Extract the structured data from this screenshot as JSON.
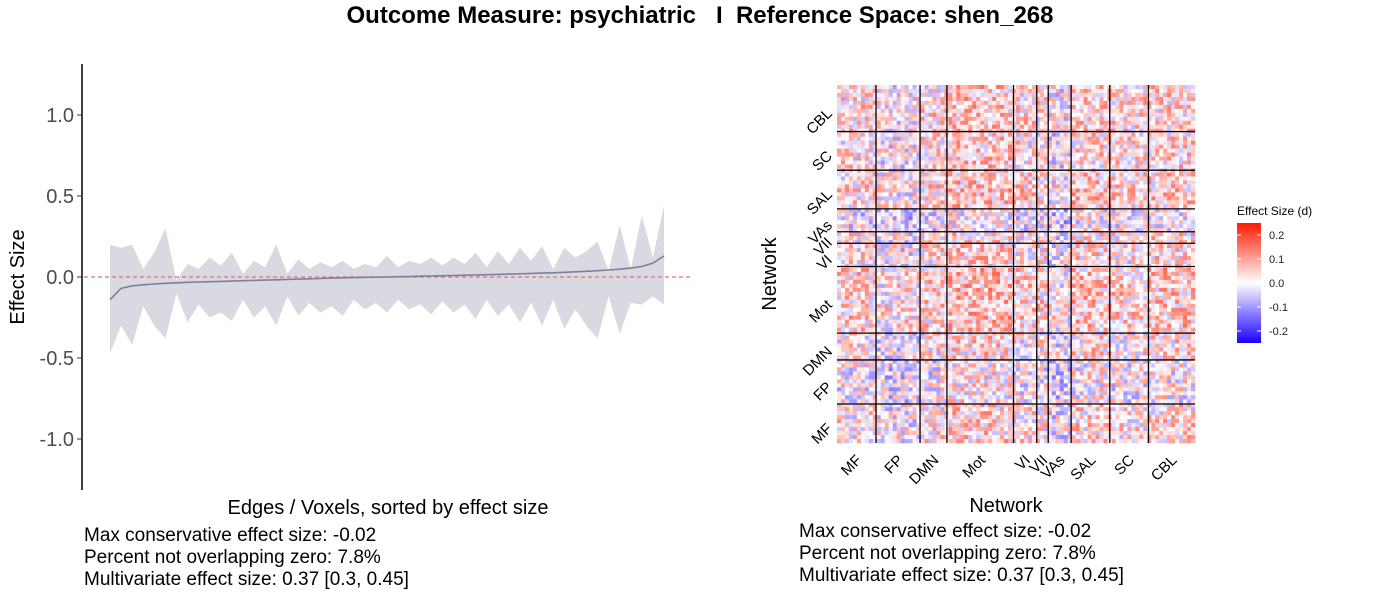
{
  "title": "Outcome Measure: psychiatric   I  Reference Space: shen_268",
  "chart_data": [
    {
      "type": "line",
      "xlabel": "Edges / Voxels, sorted by effect size",
      "ylabel": "Effect Size",
      "ylim": [
        -1.3,
        1.3
      ],
      "yticks": [
        -1.0,
        -0.5,
        0.0,
        0.5,
        1.0
      ],
      "ytick_labels": [
        "-1.0",
        "-0.5",
        "0.0",
        "0.5",
        "1.0"
      ],
      "reference_line": 0,
      "colors": {
        "line": "#7f7f9a",
        "band": "#d9d9e2",
        "reference": "#e07070"
      },
      "x": [
        0,
        0.02,
        0.04,
        0.06,
        0.08,
        0.1,
        0.12,
        0.14,
        0.16,
        0.18,
        0.2,
        0.22,
        0.24,
        0.26,
        0.28,
        0.3,
        0.32,
        0.34,
        0.36,
        0.38,
        0.4,
        0.42,
        0.44,
        0.46,
        0.48,
        0.5,
        0.52,
        0.54,
        0.56,
        0.58,
        0.6,
        0.62,
        0.64,
        0.66,
        0.68,
        0.7,
        0.72,
        0.74,
        0.76,
        0.78,
        0.8,
        0.82,
        0.84,
        0.86,
        0.88,
        0.9,
        0.92,
        0.94,
        0.96,
        0.98,
        1.0
      ],
      "series": [
        {
          "values": [
            -0.14,
            -0.07,
            -0.055,
            -0.048,
            -0.043,
            -0.039,
            -0.036,
            -0.033,
            -0.031,
            -0.029,
            -0.027,
            -0.025,
            -0.023,
            -0.021,
            -0.019,
            -0.017,
            -0.015,
            -0.013,
            -0.011,
            -0.009,
            -0.007,
            -0.005,
            -0.004,
            -0.002,
            -0.001,
            0.0,
            0.002,
            0.003,
            0.005,
            0.006,
            0.008,
            0.009,
            0.011,
            0.012,
            0.014,
            0.016,
            0.018,
            0.02,
            0.022,
            0.024,
            0.026,
            0.029,
            0.032,
            0.035,
            0.039,
            0.043,
            0.048,
            0.055,
            0.065,
            0.085,
            0.13
          ]
        }
      ],
      "band_upper": [
        0.2,
        0.18,
        0.2,
        0.05,
        0.15,
        0.3,
        -0.02,
        0.08,
        0.05,
        0.12,
        0.07,
        0.15,
        0.02,
        0.1,
        0.06,
        0.2,
        0.02,
        0.11,
        0.05,
        0.09,
        0.06,
        0.1,
        0.05,
        0.08,
        0.06,
        0.13,
        0.06,
        0.1,
        0.08,
        0.12,
        0.07,
        0.12,
        0.08,
        0.15,
        0.06,
        0.16,
        0.08,
        0.18,
        0.1,
        0.19,
        0.05,
        0.18,
        0.12,
        0.16,
        0.22,
        0.04,
        0.32,
        0.05,
        0.38,
        0.12,
        0.44
      ],
      "band_lower": [
        -0.47,
        -0.3,
        -0.42,
        -0.18,
        -0.3,
        -0.38,
        -0.1,
        -0.28,
        -0.17,
        -0.25,
        -0.22,
        -0.27,
        -0.14,
        -0.25,
        -0.18,
        -0.3,
        -0.12,
        -0.24,
        -0.16,
        -0.22,
        -0.18,
        -0.24,
        -0.14,
        -0.2,
        -0.16,
        -0.22,
        -0.14,
        -0.2,
        -0.17,
        -0.23,
        -0.15,
        -0.22,
        -0.17,
        -0.26,
        -0.14,
        -0.24,
        -0.17,
        -0.28,
        -0.16,
        -0.3,
        -0.14,
        -0.32,
        -0.2,
        -0.3,
        -0.38,
        -0.12,
        -0.35,
        -0.16,
        -0.17,
        -0.12,
        -0.17
      ]
    },
    {
      "type": "heatmap",
      "xlabel": "Network",
      "ylabel": "Network",
      "x_categories": [
        "MF",
        "FP",
        "DMN",
        "Mot",
        "VI",
        "VII",
        "VAs",
        "SAL",
        "SC",
        "CBL"
      ],
      "y_categories": [
        "MF",
        "FP",
        "DMN",
        "Mot",
        "VI",
        "VII",
        "VAs",
        "SAL",
        "SC",
        "CBL"
      ],
      "network_fractions": [
        0.109,
        0.123,
        0.075,
        0.186,
        0.065,
        0.032,
        0.064,
        0.108,
        0.108,
        0.13
      ],
      "legend": {
        "title": "Effect Size (d)",
        "ticks": [
          0.2,
          0.1,
          0.0,
          -0.1,
          -0.2
        ],
        "tick_labels": [
          "0.2",
          "0.1",
          "0.0",
          "-0.1",
          "-0.2"
        ],
        "range": [
          -0.25,
          0.25
        ]
      },
      "colors": {
        "low": "#1a00ff",
        "mid": "#ffffff",
        "high": "#ff1a00",
        "grid": "#000000"
      }
    }
  ],
  "stats": {
    "left": {
      "line1": "Max conservative effect size: -0.02",
      "line2": "Percent not overlapping zero: 7.8%",
      "line3": "Multivariate effect size: 0.37 [0.3, 0.45]"
    },
    "right": {
      "line1": "Max conservative effect size: -0.02",
      "line2": "Percent not overlapping zero: 7.8%",
      "line3": "Multivariate effect size: 0.37 [0.3, 0.45]"
    }
  }
}
